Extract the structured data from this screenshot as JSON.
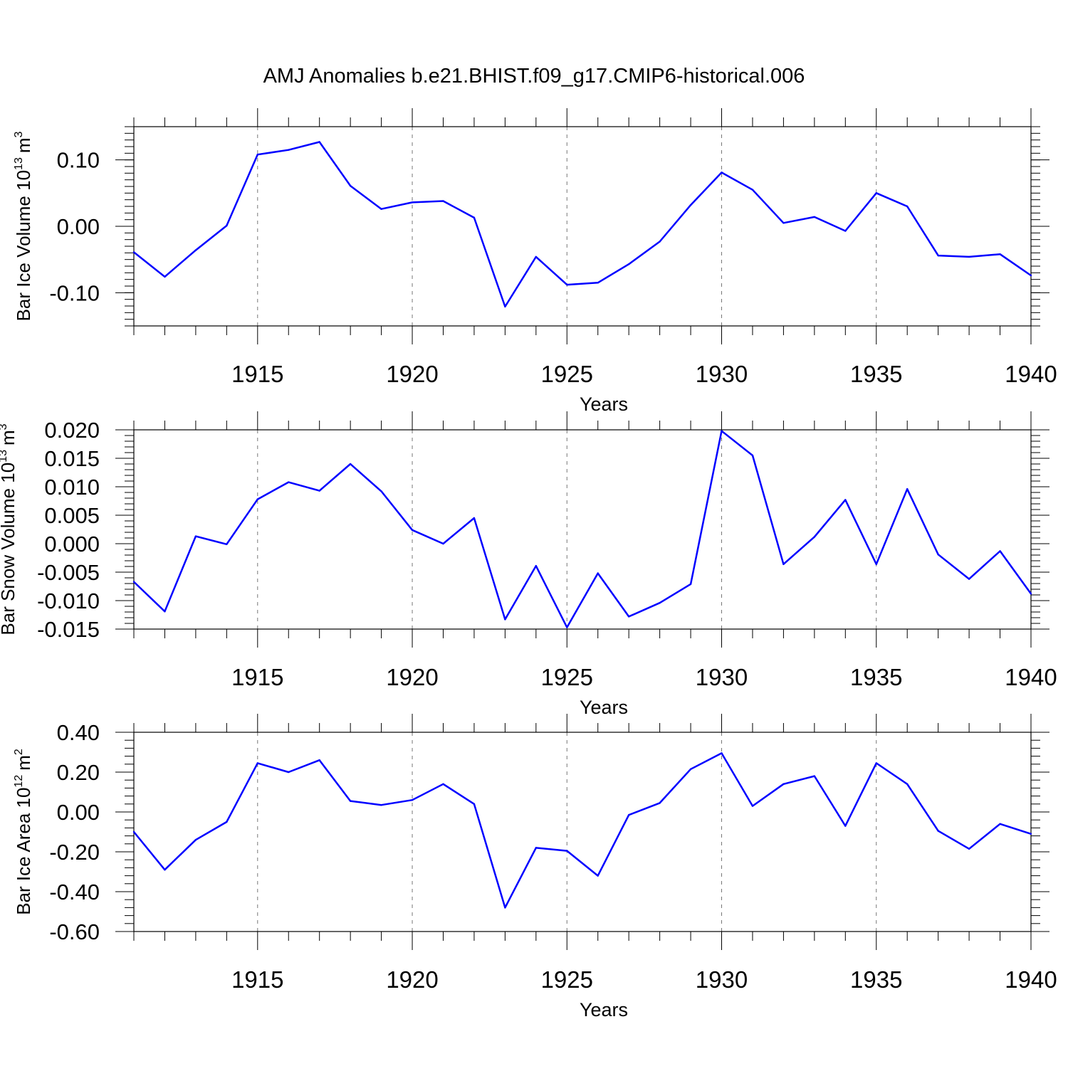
{
  "figure": {
    "title": "AMJ Anomalies b.e21.BHIST.f09_g17.CMIP6-historical.006"
  },
  "chart_data": [
    {
      "type": "line",
      "title": "AMJ Anomalies b.e21.BHIST.f09_g17.CMIP6-historical.006",
      "ylabel_main": "Bar Ice Volume 10",
      "ylabel_exp": "13",
      "ylabel_unit": "m",
      "ylabel_unit_exp": "3",
      "xlabel": "Years",
      "xlim": [
        1911,
        1940
      ],
      "ylim": [
        -0.15,
        0.15
      ],
      "yticks": [
        -0.1,
        0.0,
        0.1
      ],
      "ytick_labels": [
        "-0.10",
        "0.00",
        "0.10"
      ],
      "xticks": [
        1915,
        1920,
        1925,
        1930,
        1935,
        1940
      ],
      "xtick_labels": [
        "1915",
        "1920",
        "1925",
        "1930",
        "1935",
        "1940"
      ],
      "line_color": "#0000ff",
      "grid": "dashed vertical at major x ticks",
      "x": [
        1911,
        1912,
        1913,
        1914,
        1915,
        1916,
        1917,
        1918,
        1919,
        1920,
        1921,
        1922,
        1923,
        1924,
        1925,
        1926,
        1927,
        1928,
        1929,
        1930,
        1931,
        1932,
        1933,
        1934,
        1935,
        1936,
        1937,
        1938,
        1939,
        1940
      ],
      "values": [
        -0.039,
        -0.076,
        -0.036,
        0.001,
        0.108,
        0.115,
        0.127,
        0.061,
        0.026,
        0.036,
        0.038,
        0.013,
        -0.121,
        -0.046,
        -0.088,
        -0.085,
        -0.057,
        -0.023,
        0.032,
        0.081,
        0.055,
        0.005,
        0.014,
        -0.007,
        0.05,
        0.03,
        -0.044,
        -0.046,
        -0.042,
        -0.074
      ]
    },
    {
      "type": "line",
      "ylabel_main": "Bar Snow Volume 10",
      "ylabel_exp": "13",
      "ylabel_unit": "m",
      "ylabel_unit_exp": "3",
      "xlabel": "Years",
      "xlim": [
        1911,
        1940
      ],
      "ylim": [
        -0.015,
        0.02
      ],
      "yticks": [
        -0.015,
        -0.01,
        -0.005,
        0.0,
        0.005,
        0.01,
        0.015,
        0.02
      ],
      "ytick_labels": [
        "-0.015",
        "-0.010",
        "-0.005",
        "0.000",
        "0.005",
        "0.010",
        "0.015",
        "0.020"
      ],
      "xticks": [
        1915,
        1920,
        1925,
        1930,
        1935,
        1940
      ],
      "xtick_labels": [
        "1915",
        "1920",
        "1925",
        "1930",
        "1935",
        "1940"
      ],
      "line_color": "#0000ff",
      "grid": "dashed vertical at major x ticks",
      "x": [
        1911,
        1912,
        1913,
        1914,
        1915,
        1916,
        1917,
        1918,
        1919,
        1920,
        1921,
        1922,
        1923,
        1924,
        1925,
        1926,
        1927,
        1928,
        1929,
        1930,
        1931,
        1932,
        1933,
        1934,
        1935,
        1936,
        1937,
        1938,
        1939,
        1940
      ],
      "values": [
        -0.0067,
        -0.0119,
        0.0013,
        -0.0001,
        0.0078,
        0.0108,
        0.0093,
        0.014,
        0.0092,
        0.0024,
        0.0,
        0.0045,
        -0.0133,
        -0.0039,
        -0.0147,
        -0.0052,
        -0.0128,
        -0.0104,
        -0.0071,
        0.0198,
        0.0155,
        -0.0036,
        0.0012,
        0.0077,
        -0.0036,
        0.0096,
        -0.0019,
        -0.0062,
        -0.0013,
        -0.0088
      ]
    },
    {
      "type": "line",
      "ylabel_main": "Bar Ice Area 10",
      "ylabel_exp": "12",
      "ylabel_unit": "m",
      "ylabel_unit_exp": "2",
      "xlabel": "Years",
      "xlim": [
        1911,
        1940
      ],
      "ylim": [
        -0.6,
        0.4
      ],
      "yticks": [
        -0.6,
        -0.4,
        -0.2,
        0.0,
        0.2,
        0.4
      ],
      "ytick_labels": [
        "-0.60",
        "-0.40",
        "-0.20",
        "0.00",
        "0.20",
        "0.40"
      ],
      "xticks": [
        1915,
        1920,
        1925,
        1930,
        1935,
        1940
      ],
      "xtick_labels": [
        "1915",
        "1920",
        "1925",
        "1930",
        "1935",
        "1940"
      ],
      "line_color": "#0000ff",
      "grid": "dashed vertical at major x ticks",
      "x": [
        1911,
        1912,
        1913,
        1914,
        1915,
        1916,
        1917,
        1918,
        1919,
        1920,
        1921,
        1922,
        1923,
        1924,
        1925,
        1926,
        1927,
        1928,
        1929,
        1930,
        1931,
        1932,
        1933,
        1934,
        1935,
        1936,
        1937,
        1938,
        1939,
        1940
      ],
      "values": [
        -0.1,
        -0.29,
        -0.14,
        -0.05,
        0.245,
        0.2,
        0.26,
        0.055,
        0.035,
        0.06,
        0.14,
        0.04,
        -0.48,
        -0.18,
        -0.195,
        -0.32,
        -0.015,
        0.045,
        0.215,
        0.295,
        0.03,
        0.14,
        0.18,
        -0.07,
        0.245,
        0.14,
        -0.095,
        -0.185,
        -0.06,
        -0.11
      ]
    }
  ]
}
